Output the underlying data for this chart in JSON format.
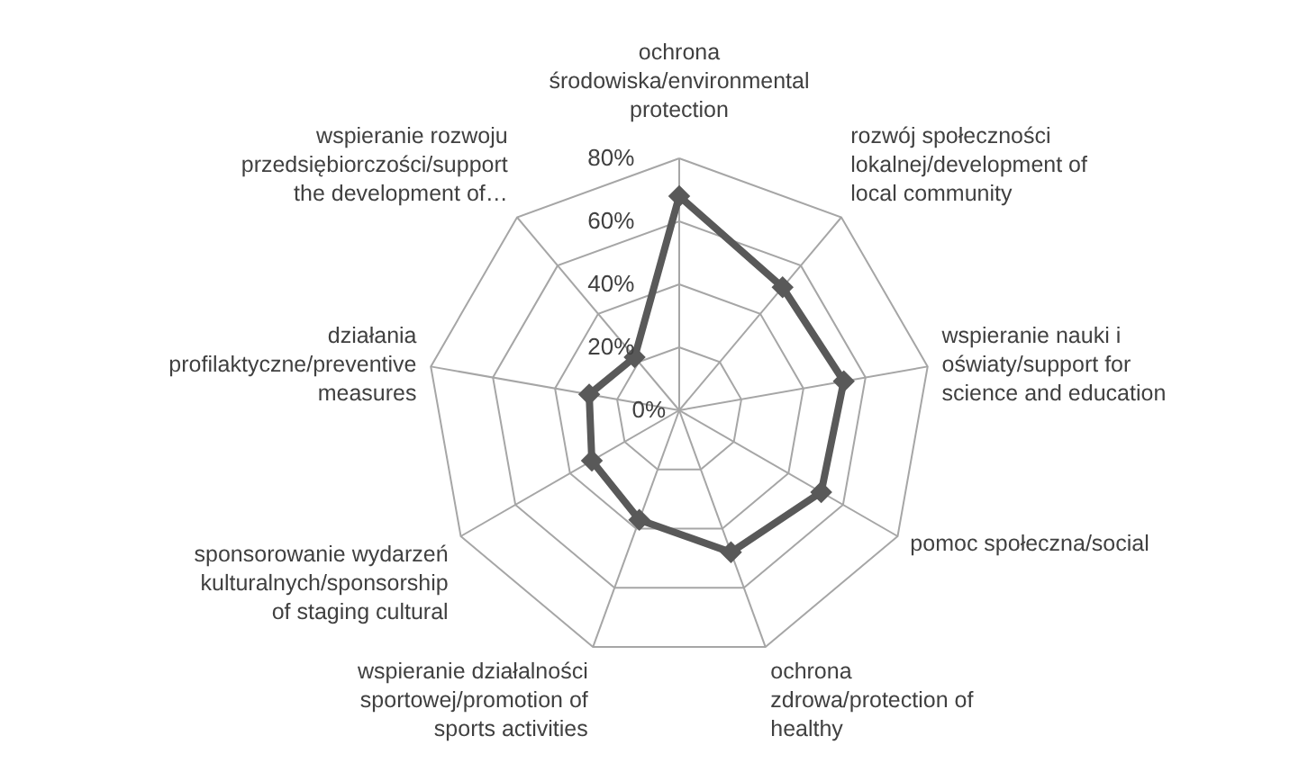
{
  "chart_data": {
    "type": "radar",
    "categories": [
      "ochrona środowiska/environmental protection",
      "rozwój społeczności lokalnej/development of local community",
      "wspieranie nauki i oświaty/support for science and education",
      "pomoc społeczna/social",
      "ochrona zdrowa/protection of healthy",
      "wspieranie działalności sportowej/promotion of sports activities",
      "sponsorowanie wydarzeń kulturalnych/sponsorship of staging cultural",
      "działania profilaktyczne/preventive measures",
      "wspieranie rozwoju przedsiębiorczości/support the development of…"
    ],
    "series": [
      {
        "color": "#595959",
        "values": [
          68,
          51,
          53,
          52,
          48,
          37,
          32,
          29,
          22
        ]
      }
    ],
    "ylim": [
      0,
      80
    ],
    "yticks": [
      {
        "value": 0,
        "label": "0%"
      },
      {
        "value": 20,
        "label": "20%"
      },
      {
        "value": 40,
        "label": "40%"
      },
      {
        "value": 60,
        "label": "60%"
      },
      {
        "value": 80,
        "label": "80%"
      }
    ],
    "grid": true,
    "marker": "diamond",
    "line_style": "solid"
  }
}
